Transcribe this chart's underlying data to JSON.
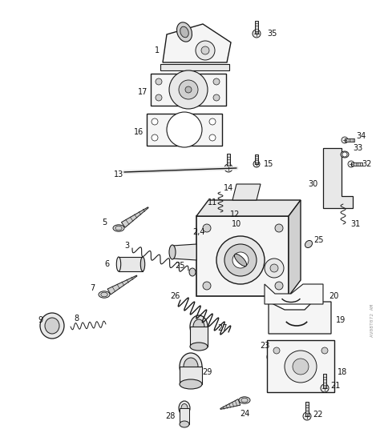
{
  "background_color": "#ffffff",
  "fig_width": 4.74,
  "fig_height": 5.56,
  "dpi": 100,
  "line_color": "#1a1a1a",
  "label_color": "#111111",
  "label_fontsize": 7.0,
  "watermark": "AV08T072 AM"
}
